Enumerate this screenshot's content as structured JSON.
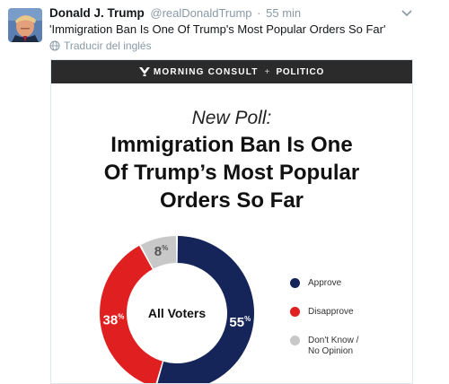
{
  "tweet": {
    "author_name": "Donald J. Trump",
    "author_handle": "@realDonaldTrump",
    "time_separator": "·",
    "timestamp": "55 min",
    "text": "'Immigration Ban Is One Of Trump's Most Popular Orders So Far'",
    "translate_label": "Traducir del inglés"
  },
  "card": {
    "banner": {
      "brand1": "MORNING CONSULT",
      "plus": "+",
      "brand2": "POLITICO"
    },
    "poll_label": "New Poll:",
    "headline_lines": [
      "Immigration Ban Is One",
      "Of Trump’s Most Popular",
      "Orders So Far"
    ]
  },
  "chart_data": {
    "type": "pie",
    "center_label": "All Voters",
    "unit": "%",
    "categories": [
      "Approve",
      "Disapprove",
      "Don't Know / No Opinion"
    ],
    "values": [
      55,
      38,
      8
    ],
    "value_labels": [
      "55",
      "38",
      "8"
    ],
    "colors": [
      "#15255a",
      "#e02020",
      "#c8c8c8"
    ]
  },
  "legend": {
    "items": [
      {
        "lines": [
          "Approve"
        ],
        "color": "#15255a"
      },
      {
        "lines": [
          "Disapprove"
        ],
        "color": "#e02020"
      },
      {
        "lines": [
          "Don't Know /",
          "No Opinion"
        ],
        "color": "#c8c8c8"
      }
    ]
  },
  "icons": {
    "avatar": "profile-photo",
    "caret": "chevron-down-icon",
    "translate": "globe-icon",
    "brand": "morning-consult-logo-icon"
  }
}
